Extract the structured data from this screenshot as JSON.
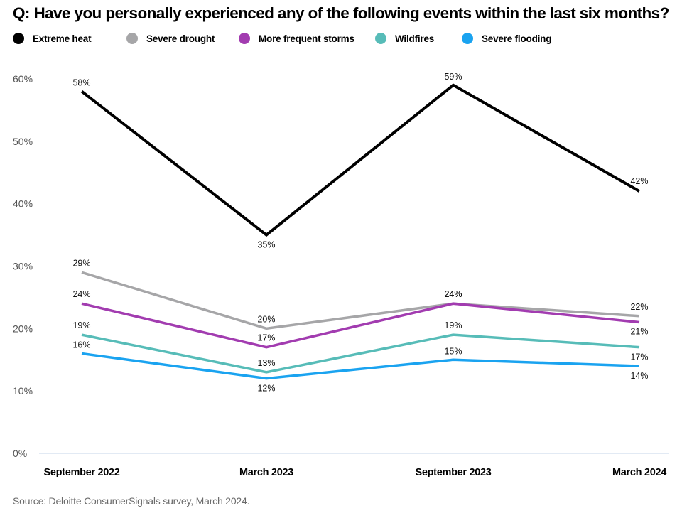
{
  "title": "Q: Have you personally experienced any of the following events within the last six months?",
  "source": "Source: Deloitte ConsumerSignals survey, March 2024.",
  "chart_data": {
    "type": "line",
    "title": "Q: Have you personally experienced any of the following events within the last six months?",
    "x": [
      "September 2022",
      "March 2023",
      "September 2023",
      "March 2024"
    ],
    "y_ticks": [
      "0%",
      "10%",
      "20%",
      "30%",
      "40%",
      "50%",
      "60%"
    ],
    "ylim": [
      0,
      60
    ],
    "grid": false,
    "legend_position": "top-left",
    "series": [
      {
        "name": "Extreme heat",
        "color": "#000000",
        "values": [
          58,
          35,
          59,
          42
        ],
        "labels": [
          "58%",
          "35%",
          "59%",
          "42%"
        ]
      },
      {
        "name": "Severe drought",
        "color": "#a6a6a8",
        "values": [
          29,
          20,
          24,
          22
        ],
        "labels": [
          "29%",
          "20%",
          "24%",
          "22%"
        ]
      },
      {
        "name": "More frequent storms",
        "color": "#a23cb0",
        "values": [
          24,
          17,
          24,
          21
        ],
        "labels": [
          "24%",
          "17%",
          "24%",
          "21%"
        ]
      },
      {
        "name": "Wildfires",
        "color": "#57bcb8",
        "values": [
          19,
          13,
          19,
          17
        ],
        "labels": [
          "19%",
          "13%",
          "19%",
          "17%"
        ]
      },
      {
        "name": "Severe flooding",
        "color": "#1aa3f0",
        "values": [
          16,
          12,
          15,
          14
        ],
        "labels": [
          "16%",
          "12%",
          "15%",
          "14%"
        ]
      }
    ]
  }
}
